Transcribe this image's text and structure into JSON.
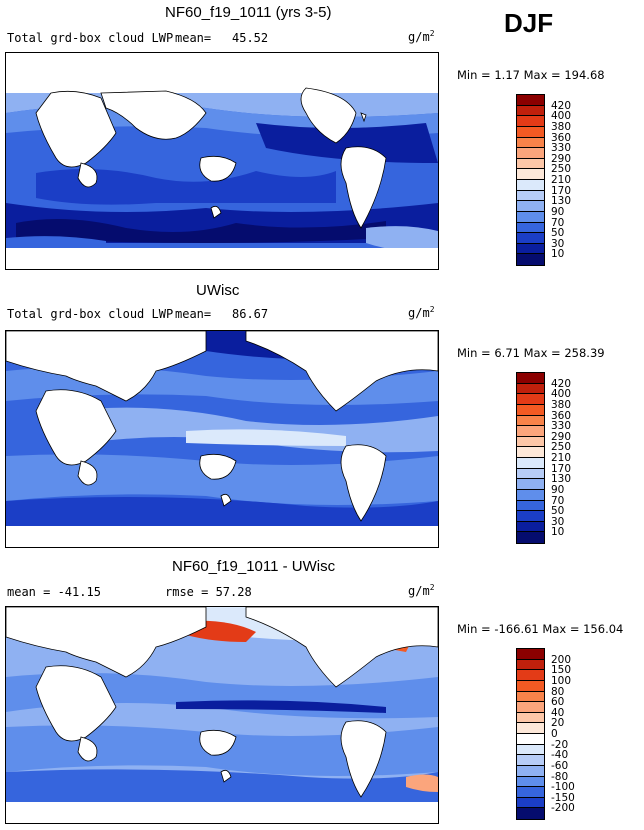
{
  "season": "DJF",
  "units_prefix": "g/m",
  "units_sup": "2",
  "panels": [
    {
      "title": "NF60_f19_1011 (yrs 3-5)",
      "subtitle": "Total grd-box cloud LWP",
      "mean_label": "mean=",
      "mean_value": "45.52",
      "stat_line": "Min =    1.17  Max = 194.68",
      "colorbar_labels": [
        "420",
        "400",
        "380",
        "360",
        "330",
        "290",
        "250",
        "210",
        "170",
        "130",
        "90",
        "70",
        "50",
        "30",
        "10"
      ],
      "colors": [
        "#8b0000",
        "#c0200c",
        "#e33b17",
        "#f35a23",
        "#f8834a",
        "#fba57c",
        "#fdc7a8",
        "#fde8d9",
        "#dbe9fb",
        "#b7cdf7",
        "#8fb1f2",
        "#5f8eeb",
        "#3665dd",
        "#1b3ec6",
        "#0a1e9e",
        "#050c6e"
      ]
    },
    {
      "title": "UWisc",
      "subtitle": "Total grd-box cloud LWP",
      "mean_label": "mean=",
      "mean_value": "86.67",
      "stat_line": "Min =    6.71  Max = 258.39",
      "colorbar_labels": [
        "420",
        "400",
        "380",
        "360",
        "330",
        "290",
        "250",
        "210",
        "170",
        "130",
        "90",
        "70",
        "50",
        "30",
        "10"
      ],
      "colors": [
        "#8b0000",
        "#c0200c",
        "#e33b17",
        "#f35a23",
        "#f8834a",
        "#fba57c",
        "#fdc7a8",
        "#fde8d9",
        "#dbe9fb",
        "#b7cdf7",
        "#8fb1f2",
        "#5f8eeb",
        "#3665dd",
        "#1b3ec6",
        "#0a1e9e",
        "#050c6e"
      ]
    },
    {
      "title": "NF60_f19_1011 - UWisc",
      "mean_line": "mean = -41.15",
      "rmse_line": "rmse =  57.28",
      "stat_line": "Min = -166.61  Max = 156.04",
      "colorbar_labels": [
        "200",
        "150",
        "100",
        "80",
        "60",
        "40",
        "20",
        "0",
        "-20",
        "-40",
        "-60",
        "-80",
        "-100",
        "-150",
        "-200"
      ],
      "colors": [
        "#8b0000",
        "#c0200c",
        "#e33b17",
        "#f35a23",
        "#f8834a",
        "#fba57c",
        "#fdc7a8",
        "#fde8d9",
        "#ffffff",
        "#dbe9fb",
        "#b7cdf7",
        "#8fb1f2",
        "#5f8eeb",
        "#3665dd",
        "#1b3ec6",
        "#050c6e"
      ]
    }
  ],
  "chart_data": [
    {
      "type": "heatmap",
      "title": "NF60_f19_1011 (yrs 3-5)",
      "variable": "Total grd-box cloud LWP",
      "units": "g/m^2",
      "season": "DJF",
      "mean": 45.52,
      "min": 1.17,
      "max": 194.68,
      "contour_levels": [
        10,
        30,
        50,
        70,
        90,
        130,
        170,
        210,
        250,
        290,
        330,
        360,
        380,
        400,
        420
      ]
    },
    {
      "type": "heatmap",
      "title": "UWisc",
      "variable": "Total grd-box cloud LWP",
      "units": "g/m^2",
      "season": "DJF",
      "mean": 86.67,
      "min": 6.71,
      "max": 258.39,
      "contour_levels": [
        10,
        30,
        50,
        70,
        90,
        130,
        170,
        210,
        250,
        290,
        330,
        360,
        380,
        400,
        420
      ]
    },
    {
      "type": "heatmap",
      "title": "NF60_f19_1011 - UWisc",
      "units": "g/m^2",
      "season": "DJF",
      "mean": -41.15,
      "rmse": 57.28,
      "min": -166.61,
      "max": 156.04,
      "contour_levels": [
        -200,
        -150,
        -100,
        -80,
        -60,
        -40,
        -20,
        0,
        20,
        40,
        60,
        80,
        100,
        150,
        200
      ]
    }
  ]
}
